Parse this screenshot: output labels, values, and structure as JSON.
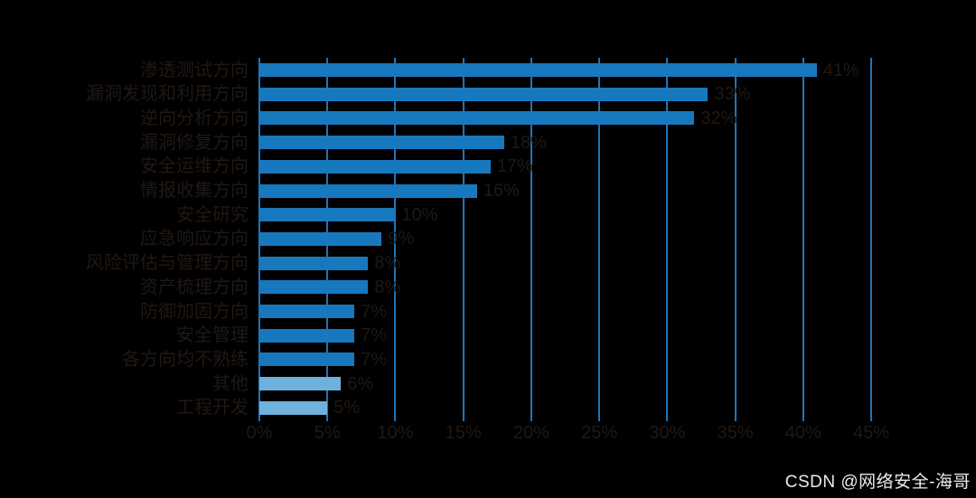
{
  "background_color": "#000000",
  "colors": {
    "bar": "#1878be",
    "bar_light": "#6fb0dc",
    "grid": "#1b76bc",
    "text": "#201813",
    "watermark_text": "#ebebeb"
  },
  "watermark": {
    "text": "CSDN @网络安全-海哥"
  },
  "chart_data": {
    "type": "bar",
    "orientation": "horizontal",
    "title": "",
    "xlabel": "",
    "ylabel": "",
    "xlim": [
      0,
      45
    ],
    "grid": true,
    "categories": [
      "渗透测试方向",
      "漏洞发现和利用方向",
      "逆向分析方向",
      "漏洞修复方向",
      "安全运维方向",
      "情报收集方向",
      "安全研究",
      "应急响应方向",
      "风险评估与管理方向",
      "资产梳理方向",
      "防御加固方向",
      "安全管理",
      "各方向均不熟练",
      "其他",
      "工程开发"
    ],
    "values": [
      41,
      33,
      32,
      18,
      17,
      16,
      10,
      9,
      8,
      8,
      7,
      7,
      7,
      6,
      5
    ],
    "value_labels": [
      "41%",
      "33%",
      "32%",
      "18%",
      "17%",
      "16%",
      "10%",
      "9%",
      "8%",
      "8%",
      "7%",
      "7%",
      "7%",
      "6%",
      "5%"
    ],
    "x_ticks": [
      "0%",
      "5%",
      "10%",
      "15%",
      "20%",
      "25%",
      "30%",
      "35%",
      "40%",
      "45%"
    ],
    "x_tick_values": [
      0,
      5,
      10,
      15,
      20,
      25,
      30,
      35,
      40,
      45
    ],
    "light_bar_indices": [
      13,
      14
    ]
  }
}
